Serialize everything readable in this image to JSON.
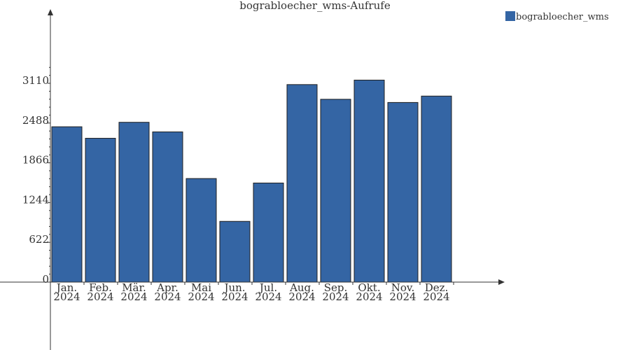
{
  "chart_data": {
    "type": "bar",
    "title": "bograbloecher_wms-Aufrufe",
    "categories": [
      [
        "Jan.",
        "2024"
      ],
      [
        "Feb.",
        "2024"
      ],
      [
        "Mär.",
        "2024"
      ],
      [
        "Apr.",
        "2024"
      ],
      [
        "Mai",
        "2024"
      ],
      [
        "Jun.",
        "2024"
      ],
      [
        "Jul.",
        "2024"
      ],
      [
        "Aug.",
        "2024"
      ],
      [
        "Sep.",
        "2024"
      ],
      [
        "Okt.",
        "2024"
      ],
      [
        "Nov.",
        "2024"
      ],
      [
        "Dez.",
        "2024"
      ]
    ],
    "series": [
      {
        "name": "bograbloecher_wms",
        "color": "#3465a4",
        "values": [
          2430,
          2250,
          2500,
          2350,
          1620,
          950,
          1550,
          3090,
          2860,
          3160,
          2810,
          2910
        ]
      }
    ],
    "yticks": [
      0,
      622,
      1244,
      1866,
      2488,
      3110
    ],
    "ylim": [
      0,
      3110
    ],
    "xlabel": "",
    "ylabel": "",
    "legend_position": "top-right",
    "grid": false
  }
}
